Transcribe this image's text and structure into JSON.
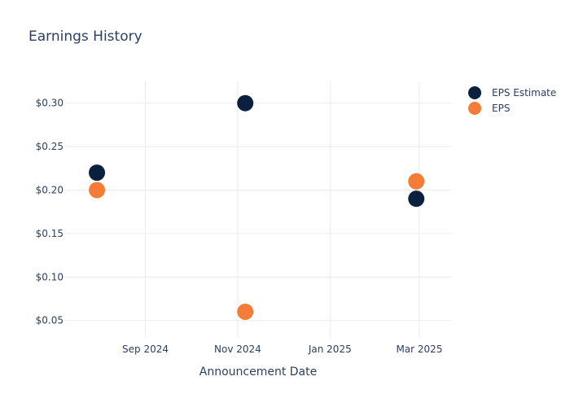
{
  "chart_data": {
    "type": "scatter",
    "title": "Earnings History",
    "xlabel": "Announcement Date",
    "ylabel": "",
    "x_type": "date",
    "xlim": [
      "2024-07-10",
      "2025-03-22"
    ],
    "ylim": [
      0.03,
      0.325
    ],
    "x_ticks": [
      {
        "value": "2024-09-01",
        "label": "Sep 2024"
      },
      {
        "value": "2024-11-01",
        "label": "Nov 2024"
      },
      {
        "value": "2025-01-01",
        "label": "Jan 2025"
      },
      {
        "value": "2025-03-01",
        "label": "Mar 2025"
      }
    ],
    "y_ticks": [
      {
        "value": 0.05,
        "label": "$0.05"
      },
      {
        "value": 0.1,
        "label": "$0.10"
      },
      {
        "value": 0.15,
        "label": "$0.15"
      },
      {
        "value": 0.2,
        "label": "$0.20"
      },
      {
        "value": 0.25,
        "label": "$0.25"
      },
      {
        "value": 0.3,
        "label": "$0.30"
      }
    ],
    "grid": true,
    "legend_position": "top-right",
    "series": [
      {
        "name": "EPS Estimate",
        "color": "#0b1f3f",
        "points": [
          {
            "x": "2024-07-31",
            "y": 0.22
          },
          {
            "x": "2024-11-06",
            "y": 0.3
          },
          {
            "x": "2025-02-27",
            "y": 0.19
          }
        ]
      },
      {
        "name": "EPS",
        "color": "#f47c36",
        "points": [
          {
            "x": "2024-07-31",
            "y": 0.2
          },
          {
            "x": "2024-11-06",
            "y": 0.06
          },
          {
            "x": "2025-02-27",
            "y": 0.21
          }
        ]
      }
    ]
  }
}
